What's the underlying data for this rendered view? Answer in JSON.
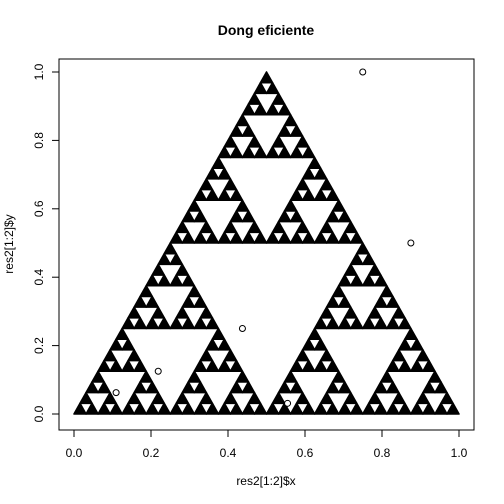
{
  "chart_data": {
    "type": "scatter",
    "title": "Dong eficiente",
    "xlabel": "res2[1:2]$x",
    "ylabel": "res2[1:2]$y",
    "xlim": [
      0,
      1
    ],
    "ylim": [
      0,
      1
    ],
    "x_ticks": [
      "0.0",
      "0.2",
      "0.4",
      "0.6",
      "0.8",
      "1.0"
    ],
    "y_ticks": [
      "0.0",
      "0.2",
      "0.4",
      "0.6",
      "0.8",
      "1.0"
    ],
    "grid": false,
    "fractal": {
      "name": "Sierpinski triangle",
      "vertices": [
        [
          0,
          0
        ],
        [
          0.5,
          1
        ],
        [
          1,
          0
        ]
      ],
      "depth": 5,
      "fill_color": "#000000"
    },
    "points": [
      {
        "x": 0.75,
        "y": 1.0
      },
      {
        "x": 0.875,
        "y": 0.5
      },
      {
        "x": 0.4375,
        "y": 0.25
      },
      {
        "x": 0.21875,
        "y": 0.125
      },
      {
        "x": 0.109375,
        "y": 0.0625
      },
      {
        "x": 0.5547,
        "y": 0.03125
      }
    ],
    "point_style": {
      "shape": "open-circle",
      "color": "#000000"
    }
  }
}
